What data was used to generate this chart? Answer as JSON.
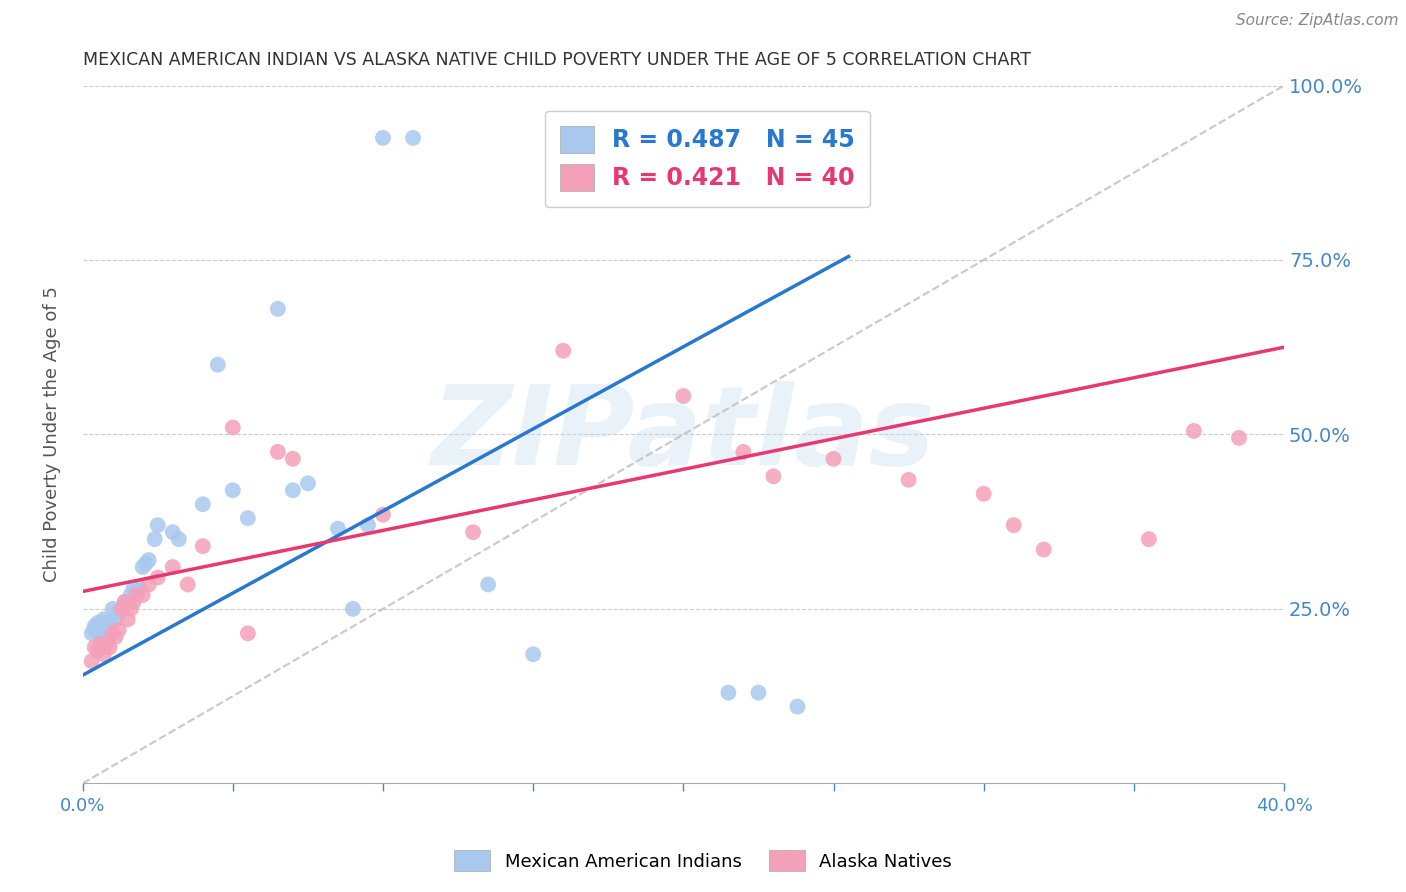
{
  "title": "MEXICAN AMERICAN INDIAN VS ALASKA NATIVE CHILD POVERTY UNDER THE AGE OF 5 CORRELATION CHART",
  "source": "Source: ZipAtlas.com",
  "ylabel": "Child Poverty Under the Age of 5",
  "xlim": [
    0.0,
    0.4
  ],
  "ylim": [
    0.0,
    1.0
  ],
  "blue_color": "#A8C8EE",
  "pink_color": "#F4A0B8",
  "blue_line_color": "#2878D0",
  "pink_line_color": "#E83870",
  "legend_R_blue": "0.487",
  "legend_N_blue": "45",
  "legend_R_pink": "0.421",
  "legend_N_pink": "40",
  "legend_label_blue": "Mexican American Indians",
  "legend_label_pink": "Alaska Natives",
  "watermark": "ZIPatlas",
  "grid_color": "#CCCCCC",
  "background_color": "#FFFFFF",
  "title_color": "#333333",
  "right_tick_color": "#4488CC",
  "bottom_tick_color": "#4488CC",
  "blue_line_x0": 0.0,
  "blue_line_y0": 0.155,
  "blue_line_x1": 0.255,
  "blue_line_y1": 0.755,
  "pink_line_x0": 0.0,
  "pink_line_y0": 0.275,
  "pink_line_x1": 0.4,
  "pink_line_y1": 0.625,
  "blue_scatter_x": [
    0.003,
    0.004,
    0.004,
    0.005,
    0.005,
    0.006,
    0.006,
    0.007,
    0.007,
    0.008,
    0.009,
    0.01,
    0.011,
    0.012,
    0.013,
    0.014,
    0.015,
    0.016,
    0.017,
    0.018,
    0.019,
    0.02,
    0.021,
    0.022,
    0.024,
    0.025,
    0.03,
    0.032,
    0.04,
    0.045,
    0.05,
    0.055,
    0.065,
    0.07,
    0.075,
    0.085,
    0.09,
    0.095,
    0.1,
    0.11,
    0.135,
    0.15,
    0.215,
    0.225,
    0.238
  ],
  "blue_scatter_y": [
    0.215,
    0.22,
    0.225,
    0.22,
    0.23,
    0.215,
    0.225,
    0.23,
    0.235,
    0.22,
    0.23,
    0.25,
    0.235,
    0.245,
    0.25,
    0.26,
    0.26,
    0.27,
    0.28,
    0.275,
    0.28,
    0.31,
    0.315,
    0.32,
    0.35,
    0.37,
    0.36,
    0.35,
    0.4,
    0.6,
    0.42,
    0.38,
    0.68,
    0.42,
    0.43,
    0.365,
    0.25,
    0.37,
    0.925,
    0.925,
    0.285,
    0.185,
    0.13,
    0.13,
    0.11
  ],
  "pink_scatter_x": [
    0.003,
    0.004,
    0.005,
    0.006,
    0.007,
    0.008,
    0.009,
    0.01,
    0.011,
    0.012,
    0.013,
    0.014,
    0.015,
    0.016,
    0.017,
    0.018,
    0.02,
    0.022,
    0.025,
    0.03,
    0.035,
    0.04,
    0.05,
    0.055,
    0.065,
    0.07,
    0.1,
    0.13,
    0.16,
    0.2,
    0.22,
    0.23,
    0.25,
    0.275,
    0.3,
    0.31,
    0.32,
    0.355,
    0.37,
    0.385
  ],
  "pink_scatter_y": [
    0.175,
    0.195,
    0.19,
    0.2,
    0.185,
    0.2,
    0.195,
    0.215,
    0.21,
    0.22,
    0.25,
    0.26,
    0.235,
    0.25,
    0.26,
    0.27,
    0.27,
    0.285,
    0.295,
    0.31,
    0.285,
    0.34,
    0.51,
    0.215,
    0.475,
    0.465,
    0.385,
    0.36,
    0.62,
    0.555,
    0.475,
    0.44,
    0.465,
    0.435,
    0.415,
    0.37,
    0.335,
    0.35,
    0.505,
    0.495
  ]
}
